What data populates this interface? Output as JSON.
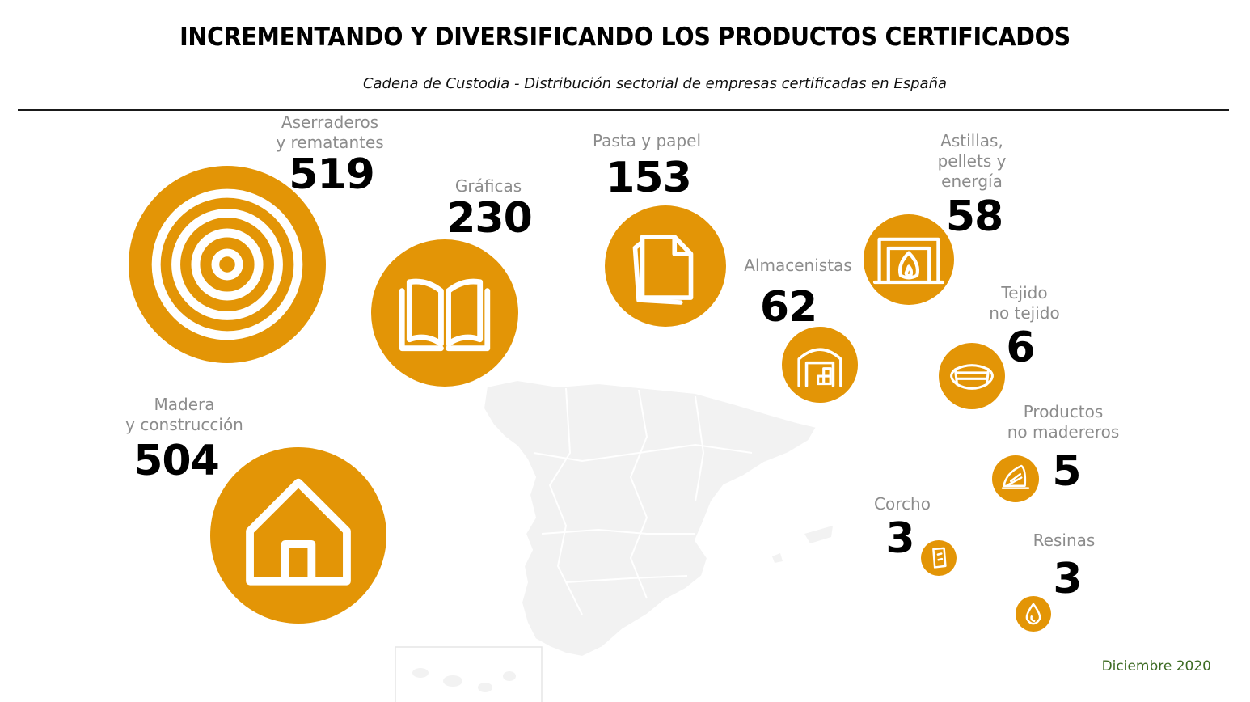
{
  "title": "INCREMENTANDO Y DIVERSIFICANDO LOS PRODUCTOS CERTIFICADOS",
  "subtitle": "Cadena de Custodia -  Distribución sectorial de empresas certificadas en España",
  "date": "Diciembre 2020",
  "colors": {
    "bubble": "#E39506",
    "map": "#F2F2F2",
    "date": "#3d6b23"
  },
  "chart_data": {
    "type": "bubble",
    "categories": [
      "Aserraderos y rematantes",
      "Gráficas",
      "Pasta y papel",
      "Almacenistas",
      "Astillas, pellets y energía",
      "Tejido no tejido",
      "Productos no madereros",
      "Madera y construcción",
      "Corcho",
      "Resinas"
    ],
    "series": [
      {
        "values": [
          519,
          230,
          153,
          62,
          58,
          6,
          5,
          504,
          3,
          3
        ]
      }
    ],
    "items": [
      {
        "label": "Aserraderos\ny rematantes",
        "value": "519",
        "icon": "tree-rings-icon"
      },
      {
        "label": "Gráficas",
        "value": "230",
        "icon": "open-book-icon"
      },
      {
        "label": "Pasta y papel",
        "value": "153",
        "icon": "paper-sheets-icon"
      },
      {
        "label": "Almacenistas",
        "value": "62",
        "icon": "warehouse-icon"
      },
      {
        "label": "Astillas,\npellets y\nenergía",
        "value": "58",
        "icon": "fireplace-icon"
      },
      {
        "label": "Tejido\nno tejido",
        "value": "6",
        "icon": "face-mask-icon"
      },
      {
        "label": "Productos\nno madereros",
        "value": "5",
        "icon": "mushroom-icon"
      },
      {
        "label": "Madera\ny construcción",
        "value": "504",
        "icon": "house-icon"
      },
      {
        "label": "Corcho",
        "value": "3",
        "icon": "cork-icon"
      },
      {
        "label": "Resinas",
        "value": "3",
        "icon": "resin-drop-icon"
      }
    ]
  }
}
